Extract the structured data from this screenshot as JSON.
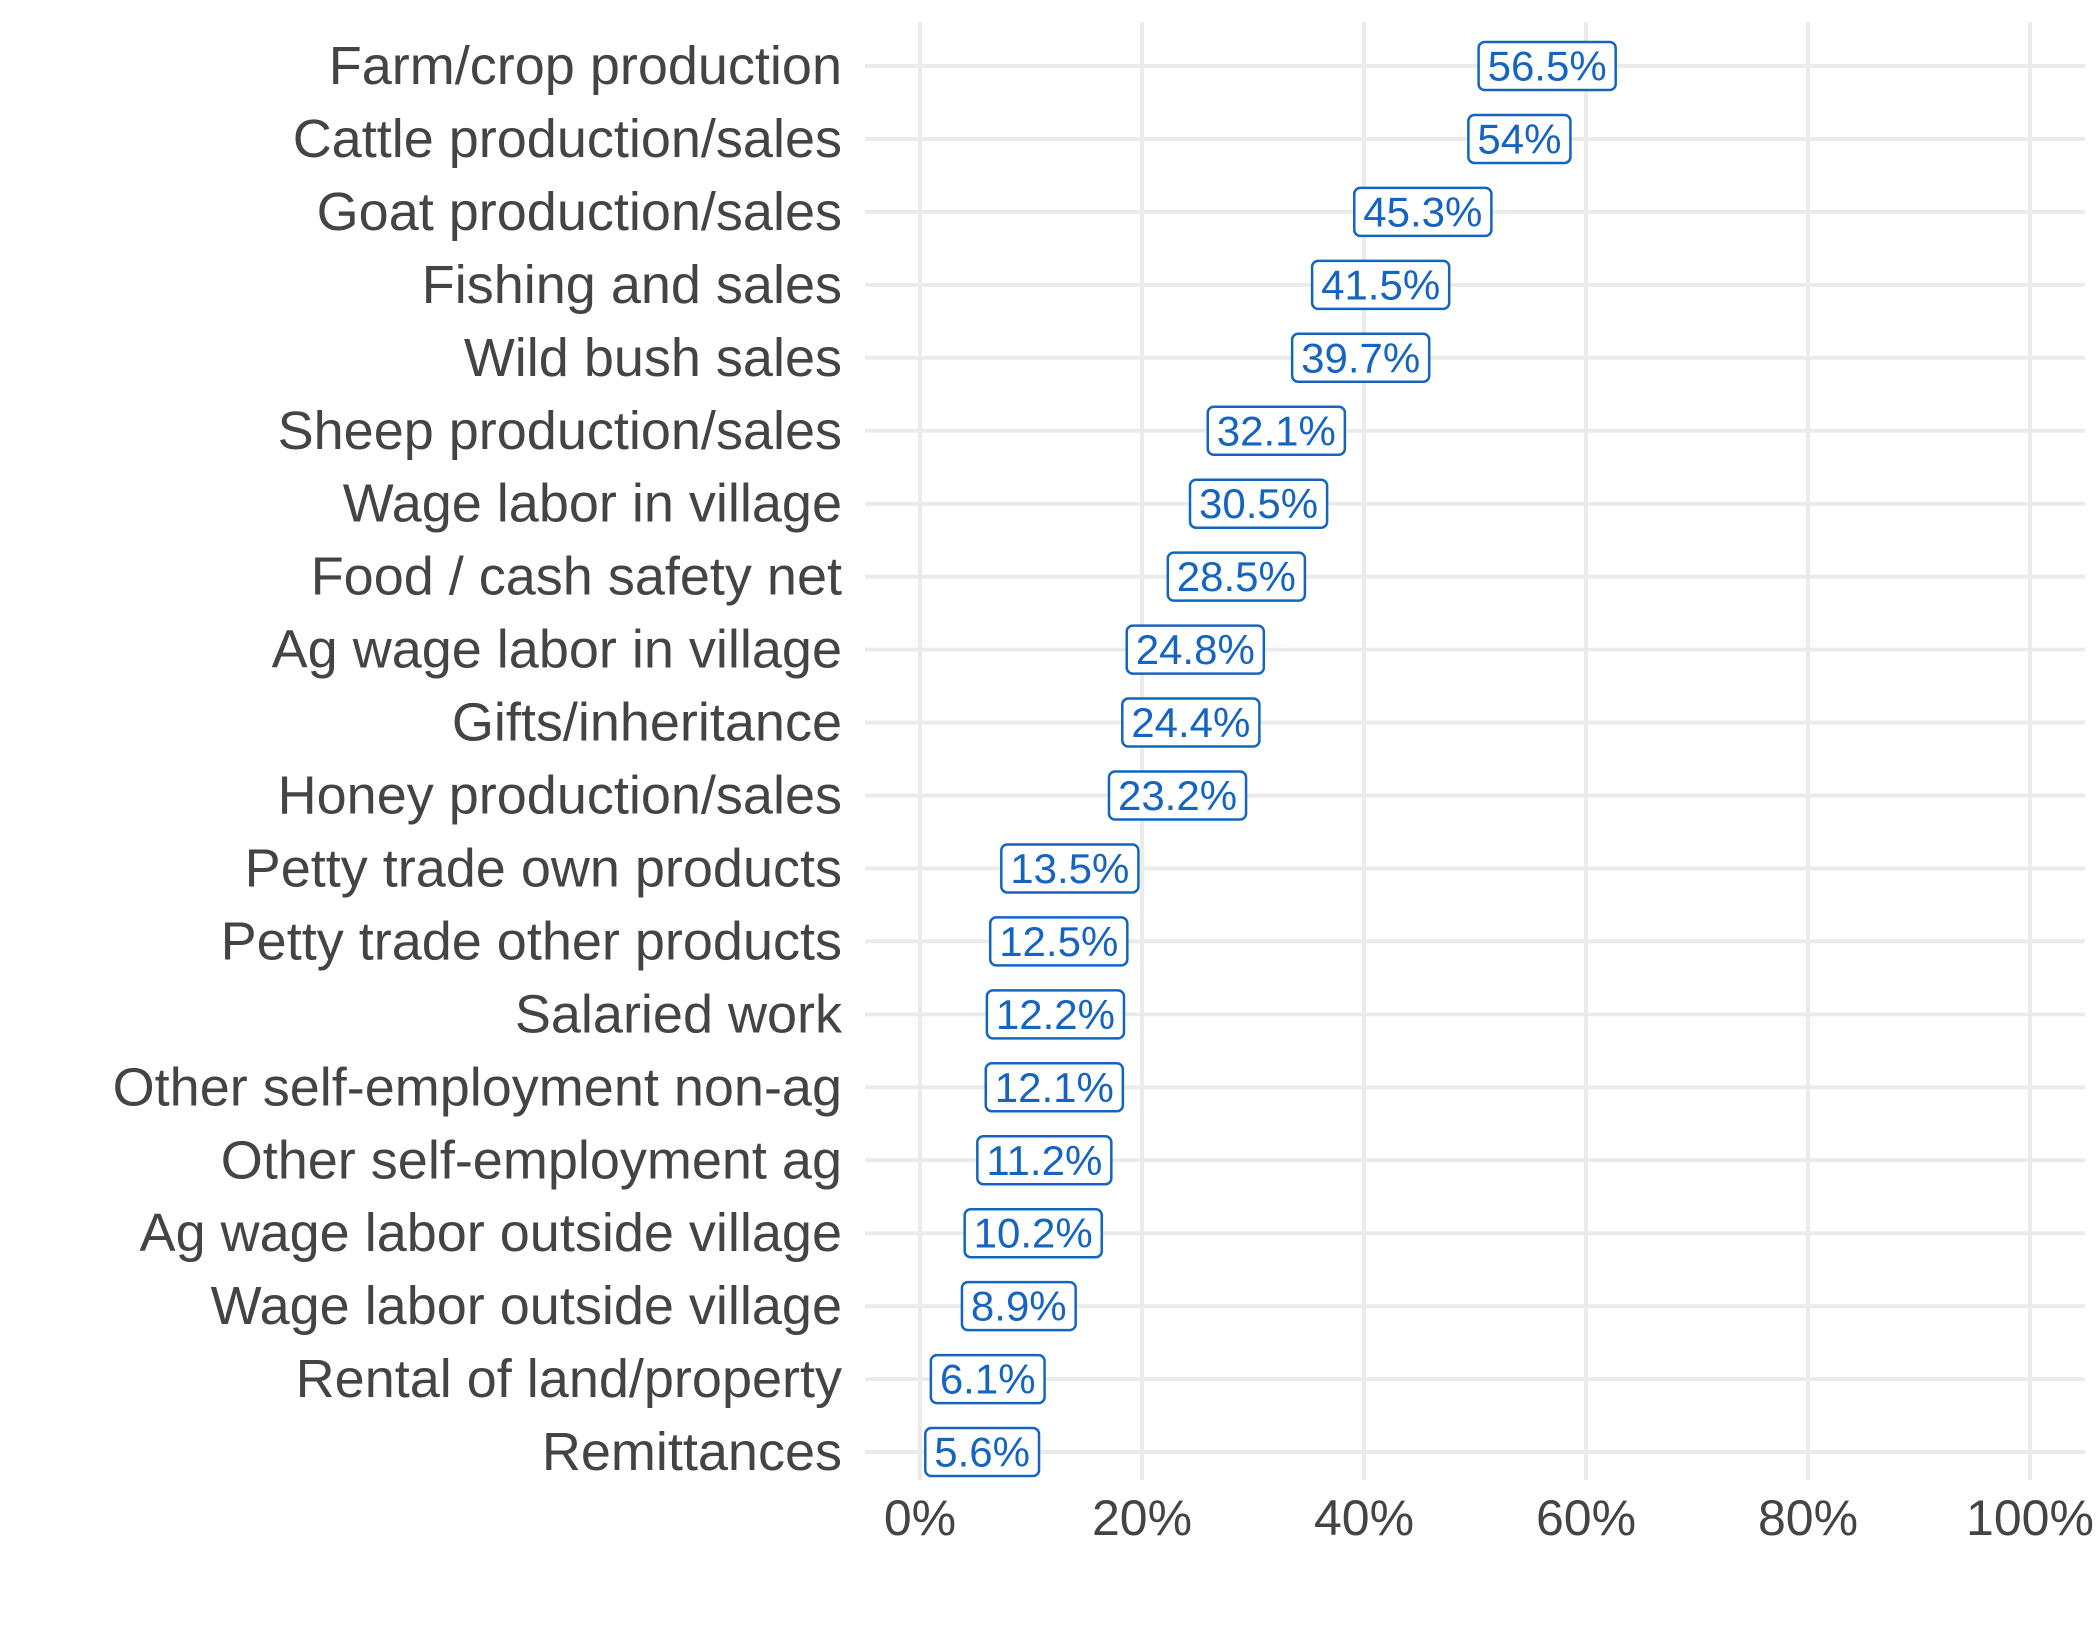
{
  "chart_data": {
    "type": "scatter",
    "title": "",
    "xlabel": "",
    "ylabel": "",
    "xlim": [
      0,
      100
    ],
    "x_tick_labels": [
      "0%",
      "20%",
      "40%",
      "60%",
      "80%",
      "100%"
    ],
    "x_ticks": [
      0,
      20,
      40,
      60,
      80,
      100
    ],
    "grid": true,
    "label_color": "#1565c0",
    "categories": [
      "Farm/crop production",
      "Cattle production/sales",
      "Goat production/sales",
      "Fishing and sales",
      "Wild bush sales",
      "Sheep production/sales",
      "Wage labor in village",
      "Food / cash safety net",
      "Ag wage labor in village",
      "Gifts/inheritance",
      "Honey production/sales",
      "Petty trade own products",
      "Petty trade other products",
      "Salaried work",
      "Other self-employment non-ag",
      "Other self-employment ag",
      "Ag wage labor outside village",
      "Wage labor outside village",
      "Rental of land/property",
      "Remittances"
    ],
    "values": [
      56.5,
      54,
      45.3,
      41.5,
      39.7,
      32.1,
      30.5,
      28.5,
      24.8,
      24.4,
      23.2,
      13.5,
      12.5,
      12.2,
      12.1,
      11.2,
      10.2,
      8.9,
      6.1,
      5.6
    ],
    "data_labels": [
      "56.5%",
      "54%",
      "45.3%",
      "41.5%",
      "39.7%",
      "32.1%",
      "30.5%",
      "28.5%",
      "24.8%",
      "24.4%",
      "23.2%",
      "13.5%",
      "12.5%",
      "12.2%",
      "12.1%",
      "11.2%",
      "10.2%",
      "8.9%",
      "6.1%",
      "5.6%"
    ]
  }
}
